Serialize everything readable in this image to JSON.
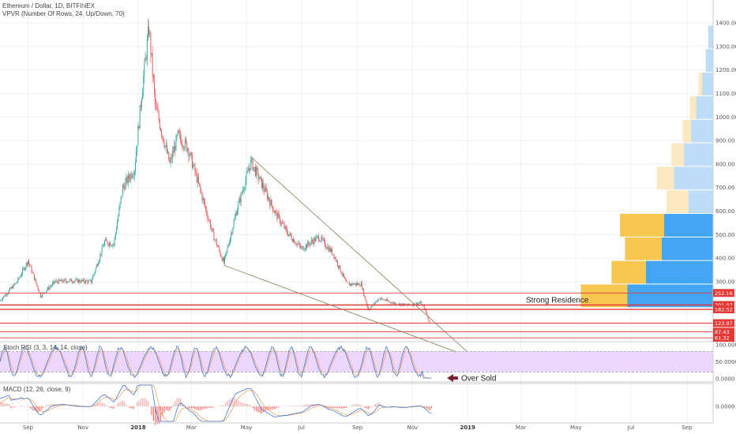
{
  "header": {
    "title": "Ethereum / Dollar, 1D, BITFINEX",
    "indicator": "VPVR (Number Of Rows, 24, Up/Down, 70)"
  },
  "chart_data": [
    {
      "type": "candlestick",
      "title": "Ethereum / Dollar, 1D, BITFINEX",
      "ylim": [
        0,
        1500
      ],
      "y_ticks": [
        "1400.00",
        "1300.00",
        "1200.00",
        "1100.00",
        "1000.00",
        "900.00",
        "800.00",
        "700.00",
        "600.00",
        "500.00",
        "400.00",
        "300.00"
      ],
      "x_ticks": [
        "Sep",
        "Nov",
        "2018",
        "Mar",
        "May",
        "Jul",
        "Sep",
        "Nov",
        "2019",
        "Mar",
        "May",
        "Jul",
        "Sep"
      ],
      "close_path": [
        {
          "x": "2017-08-01",
          "y": 220
        },
        {
          "x": "2017-08-20",
          "y": 300
        },
        {
          "x": "2017-09-01",
          "y": 390
        },
        {
          "x": "2017-09-15",
          "y": 240
        },
        {
          "x": "2017-10-01",
          "y": 300
        },
        {
          "x": "2017-10-20",
          "y": 305
        },
        {
          "x": "2017-11-10",
          "y": 300
        },
        {
          "x": "2017-11-25",
          "y": 470
        },
        {
          "x": "2017-12-05",
          "y": 460
        },
        {
          "x": "2017-12-15",
          "y": 700
        },
        {
          "x": "2017-12-28",
          "y": 780
        },
        {
          "x": "2018-01-05",
          "y": 1100
        },
        {
          "x": "2018-01-13",
          "y": 1380
        },
        {
          "x": "2018-01-20",
          "y": 1050
        },
        {
          "x": "2018-02-05",
          "y": 800
        },
        {
          "x": "2018-02-14",
          "y": 920
        },
        {
          "x": "2018-02-25",
          "y": 870
        },
        {
          "x": "2018-03-10",
          "y": 700
        },
        {
          "x": "2018-03-25",
          "y": 500
        },
        {
          "x": "2018-04-06",
          "y": 380
        },
        {
          "x": "2018-04-20",
          "y": 600
        },
        {
          "x": "2018-05-06",
          "y": 810
        },
        {
          "x": "2018-05-20",
          "y": 700
        },
        {
          "x": "2018-06-01",
          "y": 600
        },
        {
          "x": "2018-06-15",
          "y": 510
        },
        {
          "x": "2018-07-01",
          "y": 440
        },
        {
          "x": "2018-07-20",
          "y": 490
        },
        {
          "x": "2018-08-05",
          "y": 420
        },
        {
          "x": "2018-08-20",
          "y": 290
        },
        {
          "x": "2018-09-05",
          "y": 290
        },
        {
          "x": "2018-09-13",
          "y": 180
        },
        {
          "x": "2018-09-25",
          "y": 230
        },
        {
          "x": "2018-10-10",
          "y": 210
        },
        {
          "x": "2018-10-25",
          "y": 200
        },
        {
          "x": "2018-11-10",
          "y": 210
        },
        {
          "x": "2018-11-15",
          "y": 180
        },
        {
          "x": "2018-11-20",
          "y": 123.97
        }
      ],
      "horizontal_levels": [
        252.16,
        201.07,
        182.52,
        123.97,
        87.43,
        61.32
      ],
      "price_tags": [
        "252.16",
        "201.07",
        "182.52",
        "123.97",
        "87.43",
        "61.32"
      ],
      "trendlines": [
        {
          "from": {
            "x": "2018-05-06",
            "y": 830
          },
          "to": {
            "x": "2019-01-01",
            "y": 1
          }
        },
        {
          "from": {
            "x": "2018-04-06",
            "y": 370
          },
          "to": {
            "x": "2018-12-20",
            "y": 1
          }
        }
      ],
      "volume_profile": {
        "price_rows": [
          1340,
          1240,
          1140,
          1040,
          940,
          840,
          740,
          640,
          540,
          440,
          340,
          240
        ],
        "up": [
          4,
          6,
          9,
          14,
          18,
          24,
          32,
          20,
          40,
          42,
          55,
          70
        ],
        "down": [
          0,
          0,
          3,
          5,
          7,
          10,
          14,
          18,
          36,
          30,
          28,
          38
        ]
      },
      "annotations": [
        "Strong Residence"
      ]
    },
    {
      "type": "line",
      "title": "Stoch RSI (3, 3, 14, 14, close)",
      "y_ticks": [
        "100.0000",
        "50.0000",
        "0.0000"
      ],
      "levels": [
        80,
        20
      ],
      "annotations": [
        "Over Sold"
      ]
    },
    {
      "type": "line",
      "title": "MACD (12, 26, close, 9)",
      "y_ticks": [
        "0.0000"
      ]
    }
  ],
  "colors": {
    "up": "#26a69a",
    "down": "#ef5350",
    "level": "#e53935",
    "trend": "#8d8a5f",
    "vp_up": "#42a5f5",
    "vp_down": "#f9c74f",
    "stoch_bg": "#e8ccff",
    "stoch_k": "#3f7bd6",
    "stoch_d": "#f4a261"
  }
}
